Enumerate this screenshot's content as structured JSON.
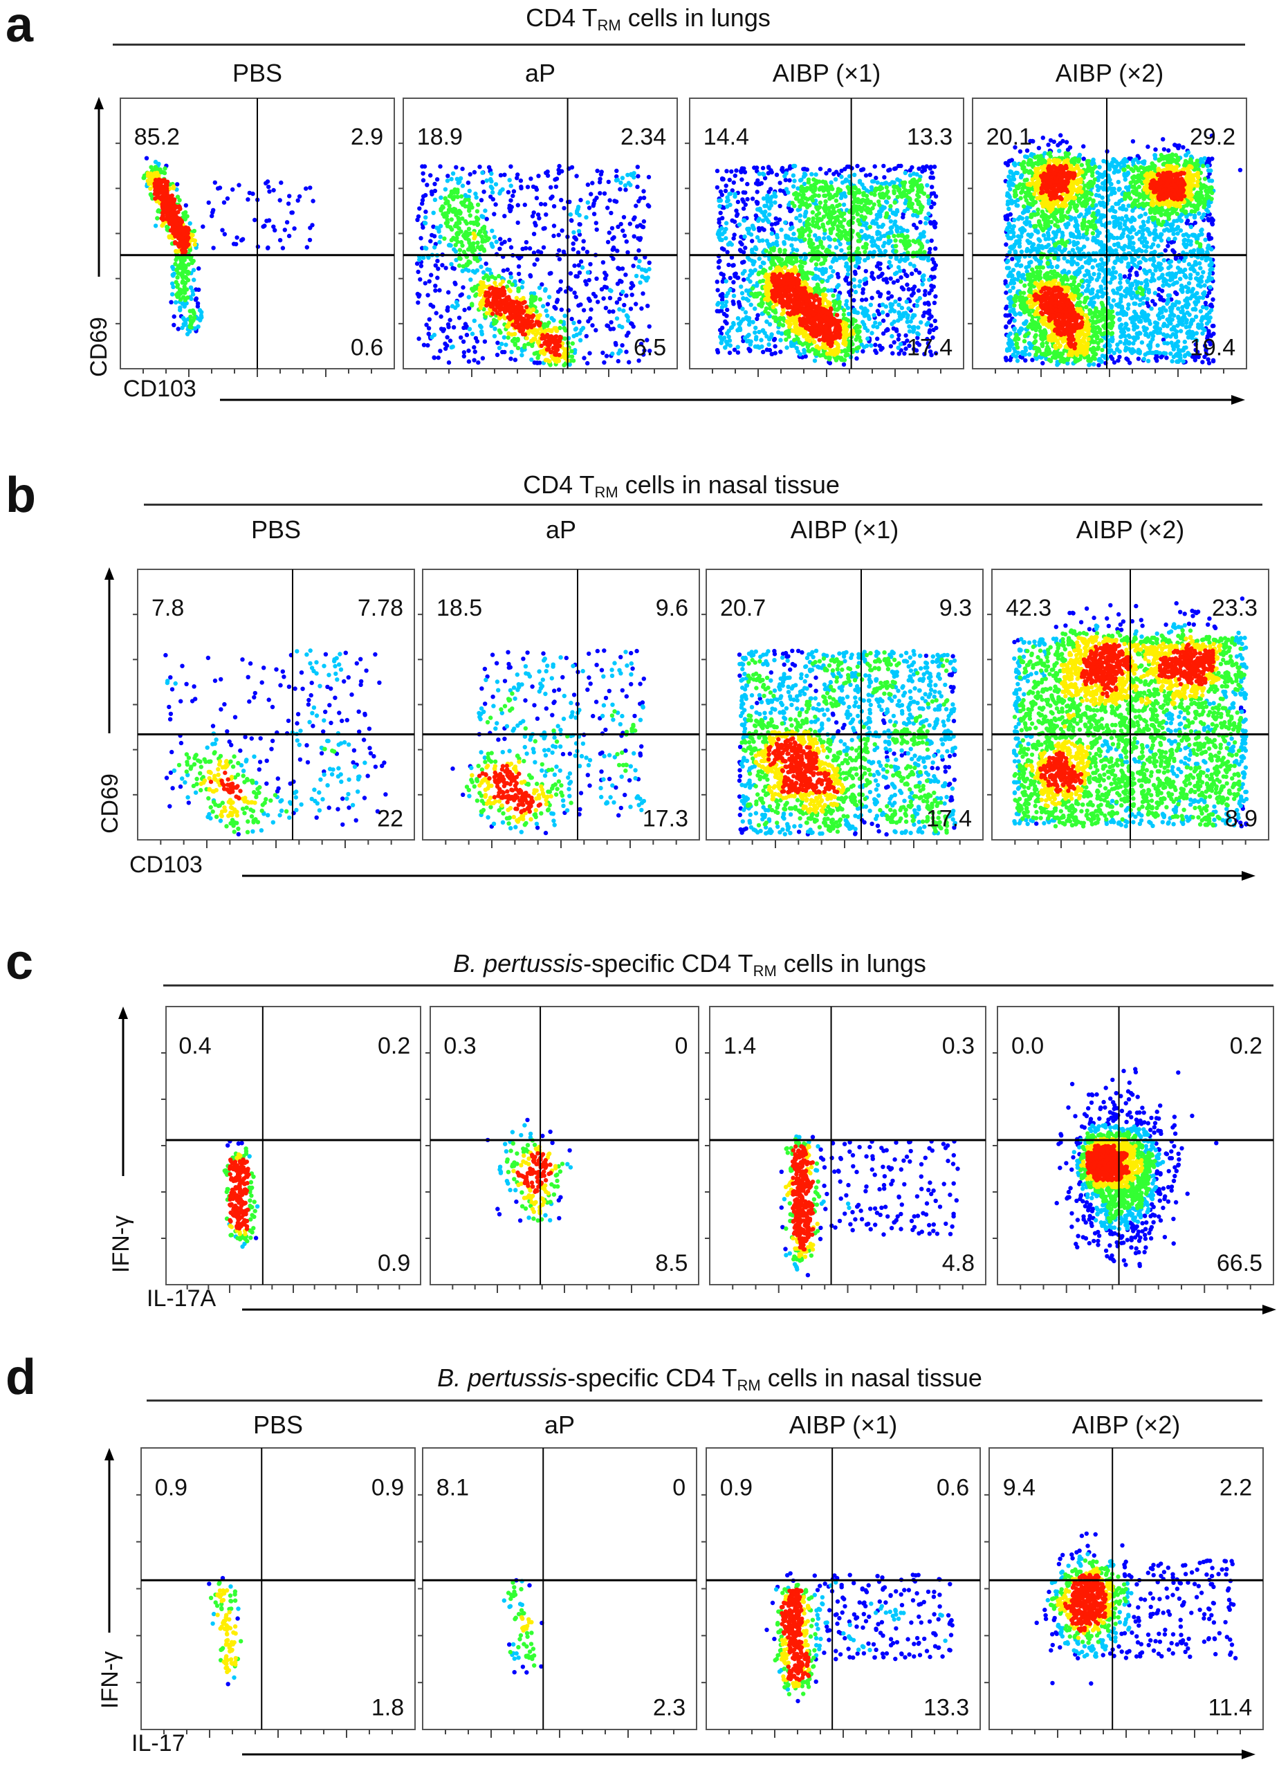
{
  "chart_data": [
    {
      "type": "scatter",
      "panel": "a",
      "title": {
        "italic": "",
        "pre": "CD4 T",
        "sub": "RM",
        "post": " cells in lungs"
      },
      "xlabel": "CD103",
      "ylabel": "CD69",
      "groups": [
        {
          "label": "PBS",
          "quadrants": {
            "upper_left": "85.2",
            "upper_right": "2.9",
            "lower_right": "0.6"
          }
        },
        {
          "label": "aP",
          "quadrants": {
            "upper_left": "18.9",
            "upper_right": "2.34",
            "lower_right": "6.5"
          }
        },
        {
          "label": "AIBP (×1)",
          "quadrants": {
            "upper_left": "14.4",
            "upper_right": "13.3",
            "lower_right": "17.4"
          }
        },
        {
          "label": "AIBP (×2)",
          "quadrants": {
            "upper_left": "20.1",
            "upper_right": "29.2",
            "lower_right": "19.4"
          }
        }
      ]
    },
    {
      "type": "scatter",
      "panel": "b",
      "title": {
        "italic": "",
        "pre": "CD4 T",
        "sub": "RM",
        "post": " cells in nasal tissue"
      },
      "xlabel": "CD103",
      "ylabel": "CD69",
      "groups": [
        {
          "label": "PBS",
          "quadrants": {
            "upper_left": "7.8",
            "upper_right": "7.78",
            "lower_right": "22"
          }
        },
        {
          "label": "aP",
          "quadrants": {
            "upper_left": "18.5",
            "upper_right": "9.6",
            "lower_right": "17.3"
          }
        },
        {
          "label": "AIBP (×1)",
          "quadrants": {
            "upper_left": "20.7",
            "upper_right": "9.3",
            "lower_right": "17.4"
          }
        },
        {
          "label": "AIBP (×2)",
          "quadrants": {
            "upper_left": "42.3",
            "upper_right": "23.3",
            "lower_right": "8.9"
          }
        }
      ]
    },
    {
      "type": "scatter",
      "panel": "c",
      "title": {
        "italic": "B. pertussis",
        "pre": "-specific CD4 T",
        "sub": "RM",
        "post": " cells in lungs"
      },
      "xlabel": "IL-17A",
      "ylabel": "IFN-γ",
      "groups": [
        {
          "label": "",
          "quadrants": {
            "upper_left": "0.4",
            "upper_right": "0.2",
            "lower_right": "0.9"
          }
        },
        {
          "label": "",
          "quadrants": {
            "upper_left": "0.3",
            "upper_right": "0",
            "lower_right": "8.5"
          }
        },
        {
          "label": "",
          "quadrants": {
            "upper_left": "1.4",
            "upper_right": "0.3",
            "lower_right": "4.8"
          }
        },
        {
          "label": "",
          "quadrants": {
            "upper_left": "0.0",
            "upper_right": "0.2",
            "lower_right": "66.5"
          }
        }
      ]
    },
    {
      "type": "scatter",
      "panel": "d",
      "title": {
        "italic": "B. pertussis",
        "pre": "-specific CD4 T",
        "sub": "RM",
        "post": " cells in nasal tissue"
      },
      "xlabel": "IL-17",
      "ylabel": "IFN-γ",
      "groups": [
        {
          "label": "PBS",
          "quadrants": {
            "upper_left": "0.9",
            "upper_right": "0.9",
            "lower_right": "1.8"
          }
        },
        {
          "label": "aP",
          "quadrants": {
            "upper_left": "8.1",
            "upper_right": "0",
            "lower_right": "2.3"
          }
        },
        {
          "label": "AIBP (×1)",
          "quadrants": {
            "upper_left": "0.9",
            "upper_right": "0.6",
            "lower_right": "13.3"
          }
        },
        {
          "label": "AIBP (×2)",
          "quadrants": {
            "upper_left": "9.4",
            "upper_right": "2.2",
            "lower_right": "11.4"
          }
        }
      ]
    }
  ],
  "colors": {
    "low": "#0000ff",
    "mid_low": "#00c8ff",
    "mid": "#33ff33",
    "mid_high": "#ffee00",
    "high": "#ff1a00",
    "gate": "#000000"
  }
}
